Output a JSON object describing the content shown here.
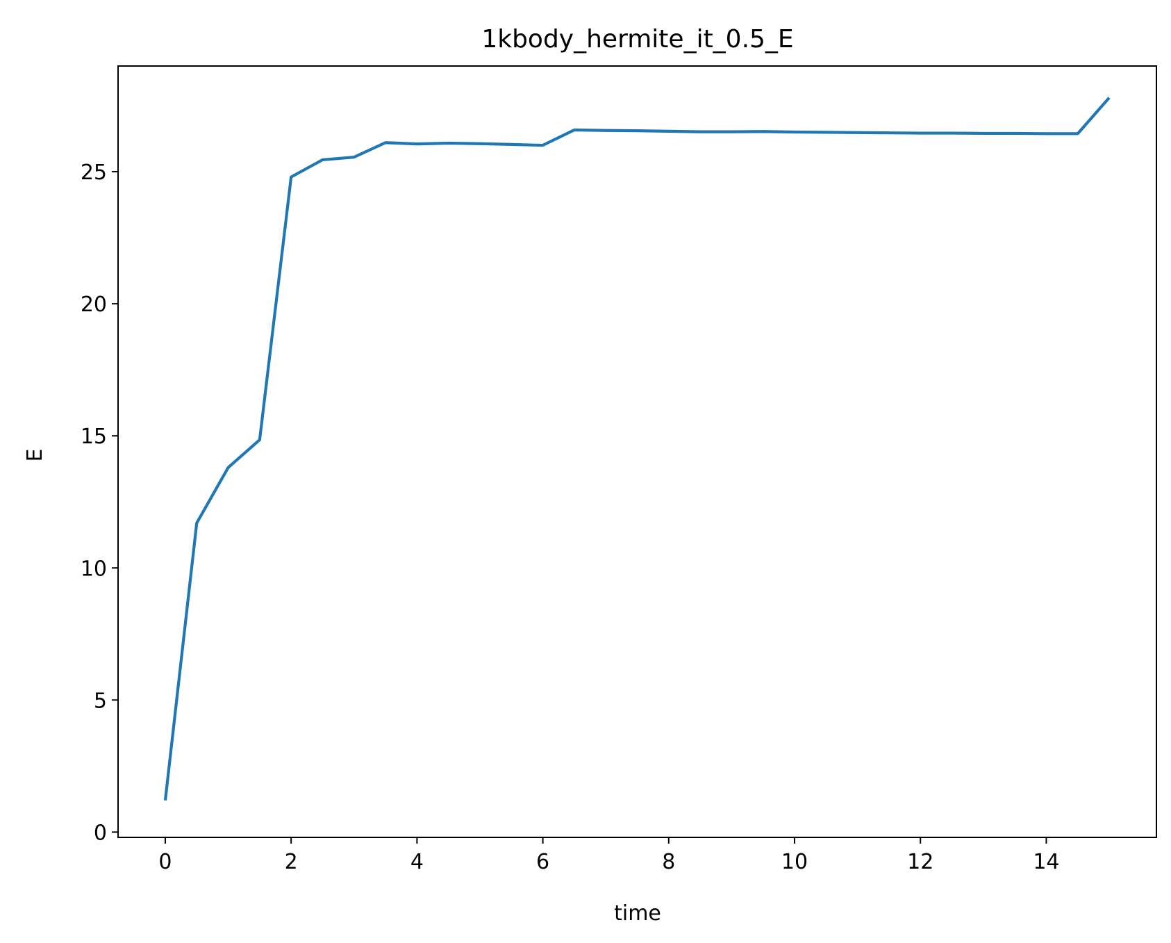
{
  "chart_data": {
    "type": "line",
    "title": "1kbody_hermite_it_0.5_E",
    "xlabel": "time",
    "ylabel": "E",
    "xlim": [
      -0.75,
      15.75
    ],
    "ylim": [
      -0.2,
      29
    ],
    "xticks": [
      0,
      2,
      4,
      6,
      8,
      10,
      12,
      14
    ],
    "yticks": [
      0,
      5,
      10,
      15,
      20,
      25
    ],
    "xtick_labels": [
      "0",
      "2",
      "4",
      "6",
      "8",
      "10",
      "12",
      "14"
    ],
    "ytick_labels": [
      "0",
      "5",
      "10",
      "15",
      "20",
      "25"
    ],
    "grid": false,
    "legend": "none",
    "series": [
      {
        "color": "#1f77b4",
        "x": [
          0,
          0.5,
          1,
          1.5,
          2,
          2.5,
          3,
          3.5,
          4,
          4.5,
          5,
          5.5,
          6,
          6.5,
          7,
          7.5,
          8,
          8.5,
          9,
          9.5,
          10,
          10.5,
          11,
          11.5,
          12,
          12.5,
          13,
          13.5,
          14,
          14.5,
          15
        ],
        "values": [
          1.2,
          11.7,
          13.8,
          14.85,
          24.8,
          25.45,
          25.55,
          26.1,
          26.05,
          26.08,
          26.06,
          26.03,
          26.0,
          26.58,
          26.56,
          26.55,
          26.53,
          26.51,
          26.51,
          26.52,
          26.5,
          26.49,
          26.48,
          26.47,
          26.46,
          26.46,
          26.45,
          26.45,
          26.44,
          26.44,
          27.8
        ]
      }
    ]
  }
}
